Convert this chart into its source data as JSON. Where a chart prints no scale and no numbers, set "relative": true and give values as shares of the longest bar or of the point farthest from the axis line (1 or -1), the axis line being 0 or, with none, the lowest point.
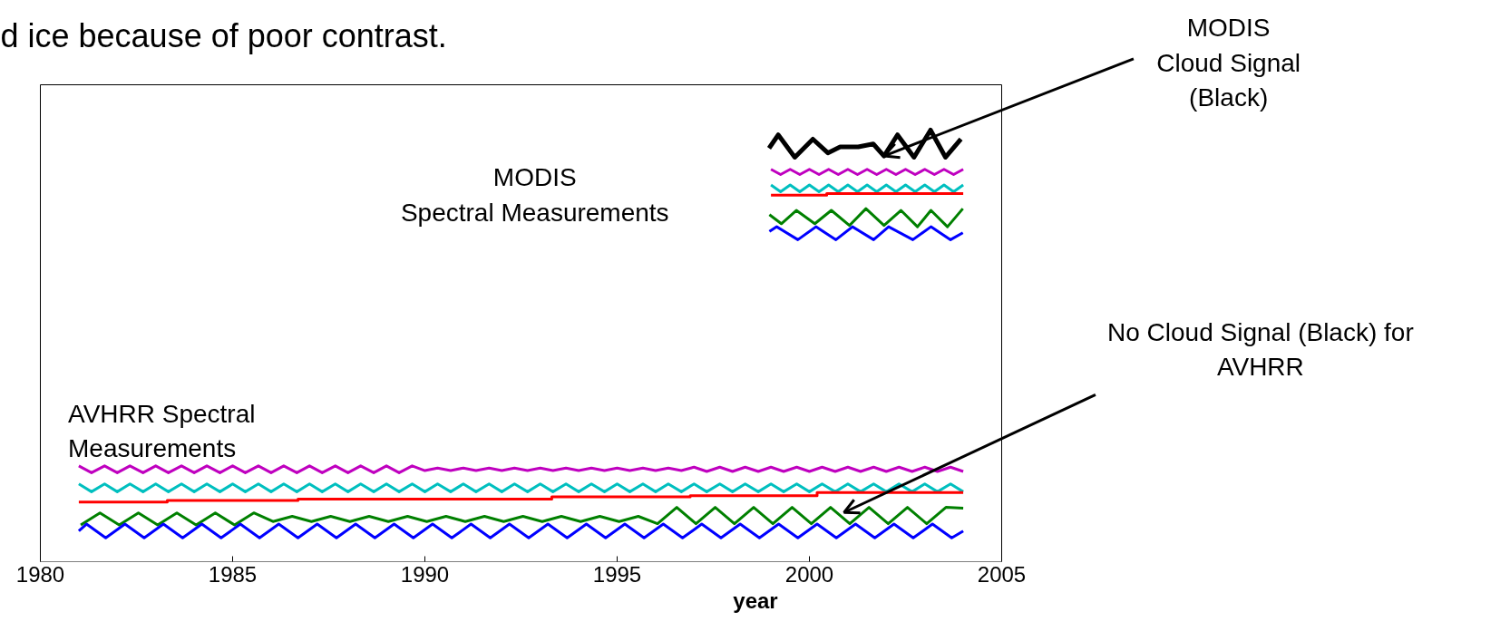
{
  "chart_data": {
    "type": "line",
    "title": "d ice because of poor contrast.",
    "xlabel": "year",
    "relative": true,
    "xlim": [
      1980,
      2005
    ],
    "xticks": [
      1980,
      1985,
      1990,
      1995,
      2000,
      2005
    ],
    "grid": false,
    "marker": "none",
    "line_style": "solid",
    "annotations": [
      "MODIS\nSpectral Measurements",
      "AVHRR Spectral\nMeasurements",
      {
        "text": "MODIS\nCloud Signal\n(Black)",
        "x": 2001.94,
        "y": 0.94
      },
      {
        "text": "No Cloud Signal (Black) for\nAVHRR",
        "x": 2000.9,
        "y": 0.114
      }
    ],
    "series": [
      {
        "color": "#bf00bf",
        "x": [
          1981,
          1981.33,
          1981.67,
          1982,
          1982.33,
          1982.67,
          1983,
          1983.33,
          1983.67,
          1984,
          1984.33,
          1984.67,
          1985,
          1985.33,
          1985.67,
          1986,
          1986.33,
          1986.67,
          1987,
          1987.33,
          1987.67,
          1988,
          1988.33,
          1988.67,
          1989,
          1989.33,
          1989.67,
          1990,
          1990.33,
          1990.67,
          1991,
          1991.33,
          1991.67,
          1992,
          1992.33,
          1992.67,
          1993,
          1993.33,
          1993.67,
          1994,
          1994.33,
          1994.67,
          1995,
          1995.33,
          1995.67,
          1996,
          1996.33,
          1996.67,
          1997,
          1997.33,
          1997.67,
          1998,
          1998.33,
          1998.67,
          1999,
          1999.33,
          1999.67,
          2000,
          2000.33,
          2000.67,
          2001,
          2001.33,
          2001.67,
          2002,
          2002.33,
          2002.67,
          2003,
          2003.33,
          2003.67,
          2004
        ],
        "values": [
          0.222,
          0.206,
          0.222,
          0.206,
          0.222,
          0.206,
          0.222,
          0.206,
          0.222,
          0.206,
          0.222,
          0.206,
          0.222,
          0.206,
          0.222,
          0.206,
          0.222,
          0.206,
          0.222,
          0.206,
          0.222,
          0.206,
          0.222,
          0.206,
          0.222,
          0.206,
          0.222,
          0.211,
          0.217,
          0.211,
          0.217,
          0.211,
          0.217,
          0.211,
          0.217,
          0.211,
          0.217,
          0.211,
          0.217,
          0.211,
          0.217,
          0.211,
          0.217,
          0.211,
          0.217,
          0.211,
          0.217,
          0.211,
          0.219,
          0.209,
          0.219,
          0.209,
          0.219,
          0.209,
          0.219,
          0.209,
          0.219,
          0.209,
          0.219,
          0.209,
          0.219,
          0.209,
          0.219,
          0.209,
          0.219,
          0.209,
          0.219,
          0.209,
          0.219,
          0.209
        ]
      },
      {
        "color": "#00bfbf",
        "x": [
          1981,
          1981.33,
          1981.67,
          1982,
          1982.33,
          1982.67,
          1983,
          1983.33,
          1983.67,
          1984,
          1984.33,
          1984.67,
          1985,
          1985.33,
          1985.67,
          1986,
          1986.33,
          1986.67,
          1987,
          1987.33,
          1987.67,
          1988,
          1988.33,
          1988.67,
          1989,
          1989.33,
          1989.67,
          1990,
          1990.33,
          1990.67,
          1991,
          1991.33,
          1991.67,
          1992,
          1992.33,
          1992.67,
          1993,
          1993.33,
          1993.67,
          1994,
          1994.33,
          1994.67,
          1995,
          1995.33,
          1995.67,
          1996,
          1996.33,
          1996.67,
          1997,
          1997.33,
          1997.67,
          1998,
          1998.33,
          1998.67,
          1999,
          1999.33,
          1999.67,
          2000,
          2000.33,
          2000.67,
          2001,
          2001.33,
          2001.67,
          2002,
          2002.33,
          2002.67,
          2003,
          2003.33,
          2003.67,
          2004
        ],
        "values": [
          0.18,
          0.162,
          0.18,
          0.162,
          0.18,
          0.162,
          0.18,
          0.162,
          0.18,
          0.162,
          0.18,
          0.162,
          0.18,
          0.162,
          0.18,
          0.162,
          0.18,
          0.162,
          0.18,
          0.162,
          0.18,
          0.162,
          0.18,
          0.162,
          0.18,
          0.162,
          0.18,
          0.162,
          0.18,
          0.162,
          0.18,
          0.162,
          0.18,
          0.162,
          0.18,
          0.162,
          0.18,
          0.162,
          0.18,
          0.162,
          0.18,
          0.162,
          0.18,
          0.162,
          0.18,
          0.162,
          0.18,
          0.162,
          0.18,
          0.162,
          0.18,
          0.162,
          0.18,
          0.162,
          0.18,
          0.162,
          0.18,
          0.162,
          0.18,
          0.162,
          0.18,
          0.162,
          0.18,
          0.162,
          0.18,
          0.162,
          0.18,
          0.162,
          0.18,
          0.162
        ]
      },
      {
        "color": "#ff0000",
        "x": [
          1981,
          1983.3,
          1983.3,
          1986.7,
          1986.7,
          1993.3,
          1993.3,
          1996.9,
          1996.9,
          2000.2,
          2000.2,
          2004
        ],
        "values": [
          0.138,
          0.138,
          0.142,
          0.142,
          0.145,
          0.145,
          0.15,
          0.15,
          0.153,
          0.153,
          0.16,
          0.16
        ]
      },
      {
        "color": "#008000",
        "x": [
          1981.05,
          1981.55,
          1982.05,
          1982.55,
          1983.05,
          1983.55,
          1984.05,
          1984.55,
          1985.05,
          1985.55,
          1986.05,
          1986.55,
          1987.05,
          1987.55,
          1988.05,
          1988.55,
          1989.05,
          1989.55,
          1990.05,
          1990.55,
          1991.05,
          1991.55,
          1992.05,
          1992.55,
          1993.05,
          1993.55,
          1994.05,
          1994.55,
          1995.05,
          1995.55,
          1996.05,
          1996.55,
          1997.05,
          1997.55,
          1998.05,
          1998.55,
          1999.05,
          1999.55,
          2000.05,
          2000.55,
          2001.05,
          2001.55,
          2002.05,
          2002.55,
          2003.05,
          2003.55,
          2004
        ],
        "values": [
          0.085,
          0.113,
          0.085,
          0.113,
          0.085,
          0.113,
          0.085,
          0.113,
          0.085,
          0.113,
          0.093,
          0.105,
          0.093,
          0.105,
          0.093,
          0.105,
          0.093,
          0.105,
          0.093,
          0.105,
          0.093,
          0.105,
          0.093,
          0.105,
          0.093,
          0.105,
          0.093,
          0.105,
          0.093,
          0.105,
          0.088,
          0.126,
          0.088,
          0.126,
          0.088,
          0.126,
          0.088,
          0.126,
          0.088,
          0.126,
          0.088,
          0.126,
          0.088,
          0.126,
          0.088,
          0.126,
          0.124
        ]
      },
      {
        "color": "#0000ff",
        "x": [
          1981,
          1981.2,
          1981.7,
          1982.2,
          1982.7,
          1983.2,
          1983.7,
          1984.2,
          1984.7,
          1985.2,
          1985.7,
          1986.2,
          1986.7,
          1987.2,
          1987.7,
          1988.2,
          1988.7,
          1989.2,
          1989.7,
          1990.2,
          1990.7,
          1991.2,
          1991.7,
          1992.2,
          1992.7,
          1993.2,
          1993.7,
          1994.2,
          1994.7,
          1995.2,
          1995.7,
          1996.2,
          1996.7,
          1997.2,
          1997.7,
          1998.2,
          1998.7,
          1999.2,
          1999.7,
          2000.2,
          2000.7,
          2001.2,
          2001.7,
          2002.2,
          2002.7,
          2003.2,
          2003.7,
          2004
        ],
        "values": [
          0.071,
          0.087,
          0.055,
          0.087,
          0.055,
          0.087,
          0.055,
          0.087,
          0.055,
          0.087,
          0.055,
          0.087,
          0.055,
          0.087,
          0.055,
          0.087,
          0.055,
          0.087,
          0.055,
          0.087,
          0.055,
          0.087,
          0.055,
          0.087,
          0.055,
          0.087,
          0.055,
          0.087,
          0.055,
          0.087,
          0.055,
          0.087,
          0.055,
          0.087,
          0.055,
          0.087,
          0.055,
          0.087,
          0.055,
          0.087,
          0.055,
          0.087,
          0.055,
          0.087,
          0.055,
          0.087,
          0.055,
          0.071
        ]
      },
      {
        "color": "#000000",
        "x": [
          1998.95,
          1999.19,
          1999.62,
          2000.09,
          2000.48,
          2000.8,
          2001.27,
          2001.66,
          2001.94,
          2002.29,
          2002.72,
          2003.15,
          2003.54,
          2003.94
        ],
        "values": [
          0.958,
          0.989,
          0.937,
          0.979,
          0.947,
          0.961,
          0.961,
          0.968,
          0.94,
          0.989,
          0.937,
          1.0,
          0.937,
          0.979
        ]
      },
      {
        "color": "#bf00bf",
        "x": [
          1999,
          1999.25,
          1999.5,
          1999.75,
          2000,
          2000.25,
          2000.5,
          2000.75,
          2001,
          2001.25,
          2001.5,
          2001.75,
          2002,
          2002.25,
          2002.5,
          2002.75,
          2003,
          2003.25,
          2003.5,
          2003.75,
          2004
        ],
        "values": [
          0.909,
          0.897,
          0.909,
          0.897,
          0.909,
          0.897,
          0.909,
          0.897,
          0.909,
          0.897,
          0.909,
          0.897,
          0.909,
          0.897,
          0.909,
          0.897,
          0.909,
          0.897,
          0.909,
          0.897,
          0.909
        ]
      },
      {
        "color": "#00bfbf",
        "x": [
          1999,
          1999.25,
          1999.5,
          1999.75,
          2000,
          2000.25,
          2000.5,
          2000.75,
          2001,
          2001.25,
          2001.5,
          2001.75,
          2002,
          2002.25,
          2002.5,
          2002.75,
          2003,
          2003.25,
          2003.5,
          2003.75,
          2004
        ],
        "values": [
          0.873,
          0.857,
          0.873,
          0.857,
          0.873,
          0.857,
          0.873,
          0.857,
          0.873,
          0.857,
          0.873,
          0.857,
          0.873,
          0.857,
          0.873,
          0.857,
          0.873,
          0.857,
          0.873,
          0.857,
          0.873
        ]
      },
      {
        "color": "#ff0000",
        "x": [
          1999,
          2000.45,
          2000.45,
          2004
        ],
        "values": [
          0.849,
          0.849,
          0.853,
          0.853
        ]
      },
      {
        "color": "#008000",
        "x": [
          1998.96,
          1999.27,
          1999.66,
          2000.14,
          2000.57,
          2001.04,
          2001.47,
          2001.94,
          2002.38,
          2002.81,
          2003.16,
          2003.59,
          2003.99
        ],
        "values": [
          0.804,
          0.783,
          0.814,
          0.783,
          0.814,
          0.779,
          0.818,
          0.779,
          0.814,
          0.776,
          0.814,
          0.776,
          0.818
        ]
      },
      {
        "color": "#0000ff",
        "x": [
          1998.96,
          1999.15,
          1999.7,
          2000.17,
          2000.69,
          2001.12,
          2001.67,
          2002.06,
          2002.69,
          2003.16,
          2003.67,
          2003.99
        ],
        "values": [
          0.765,
          0.776,
          0.746,
          0.776,
          0.746,
          0.776,
          0.746,
          0.776,
          0.746,
          0.776,
          0.746,
          0.762
        ]
      }
    ]
  }
}
